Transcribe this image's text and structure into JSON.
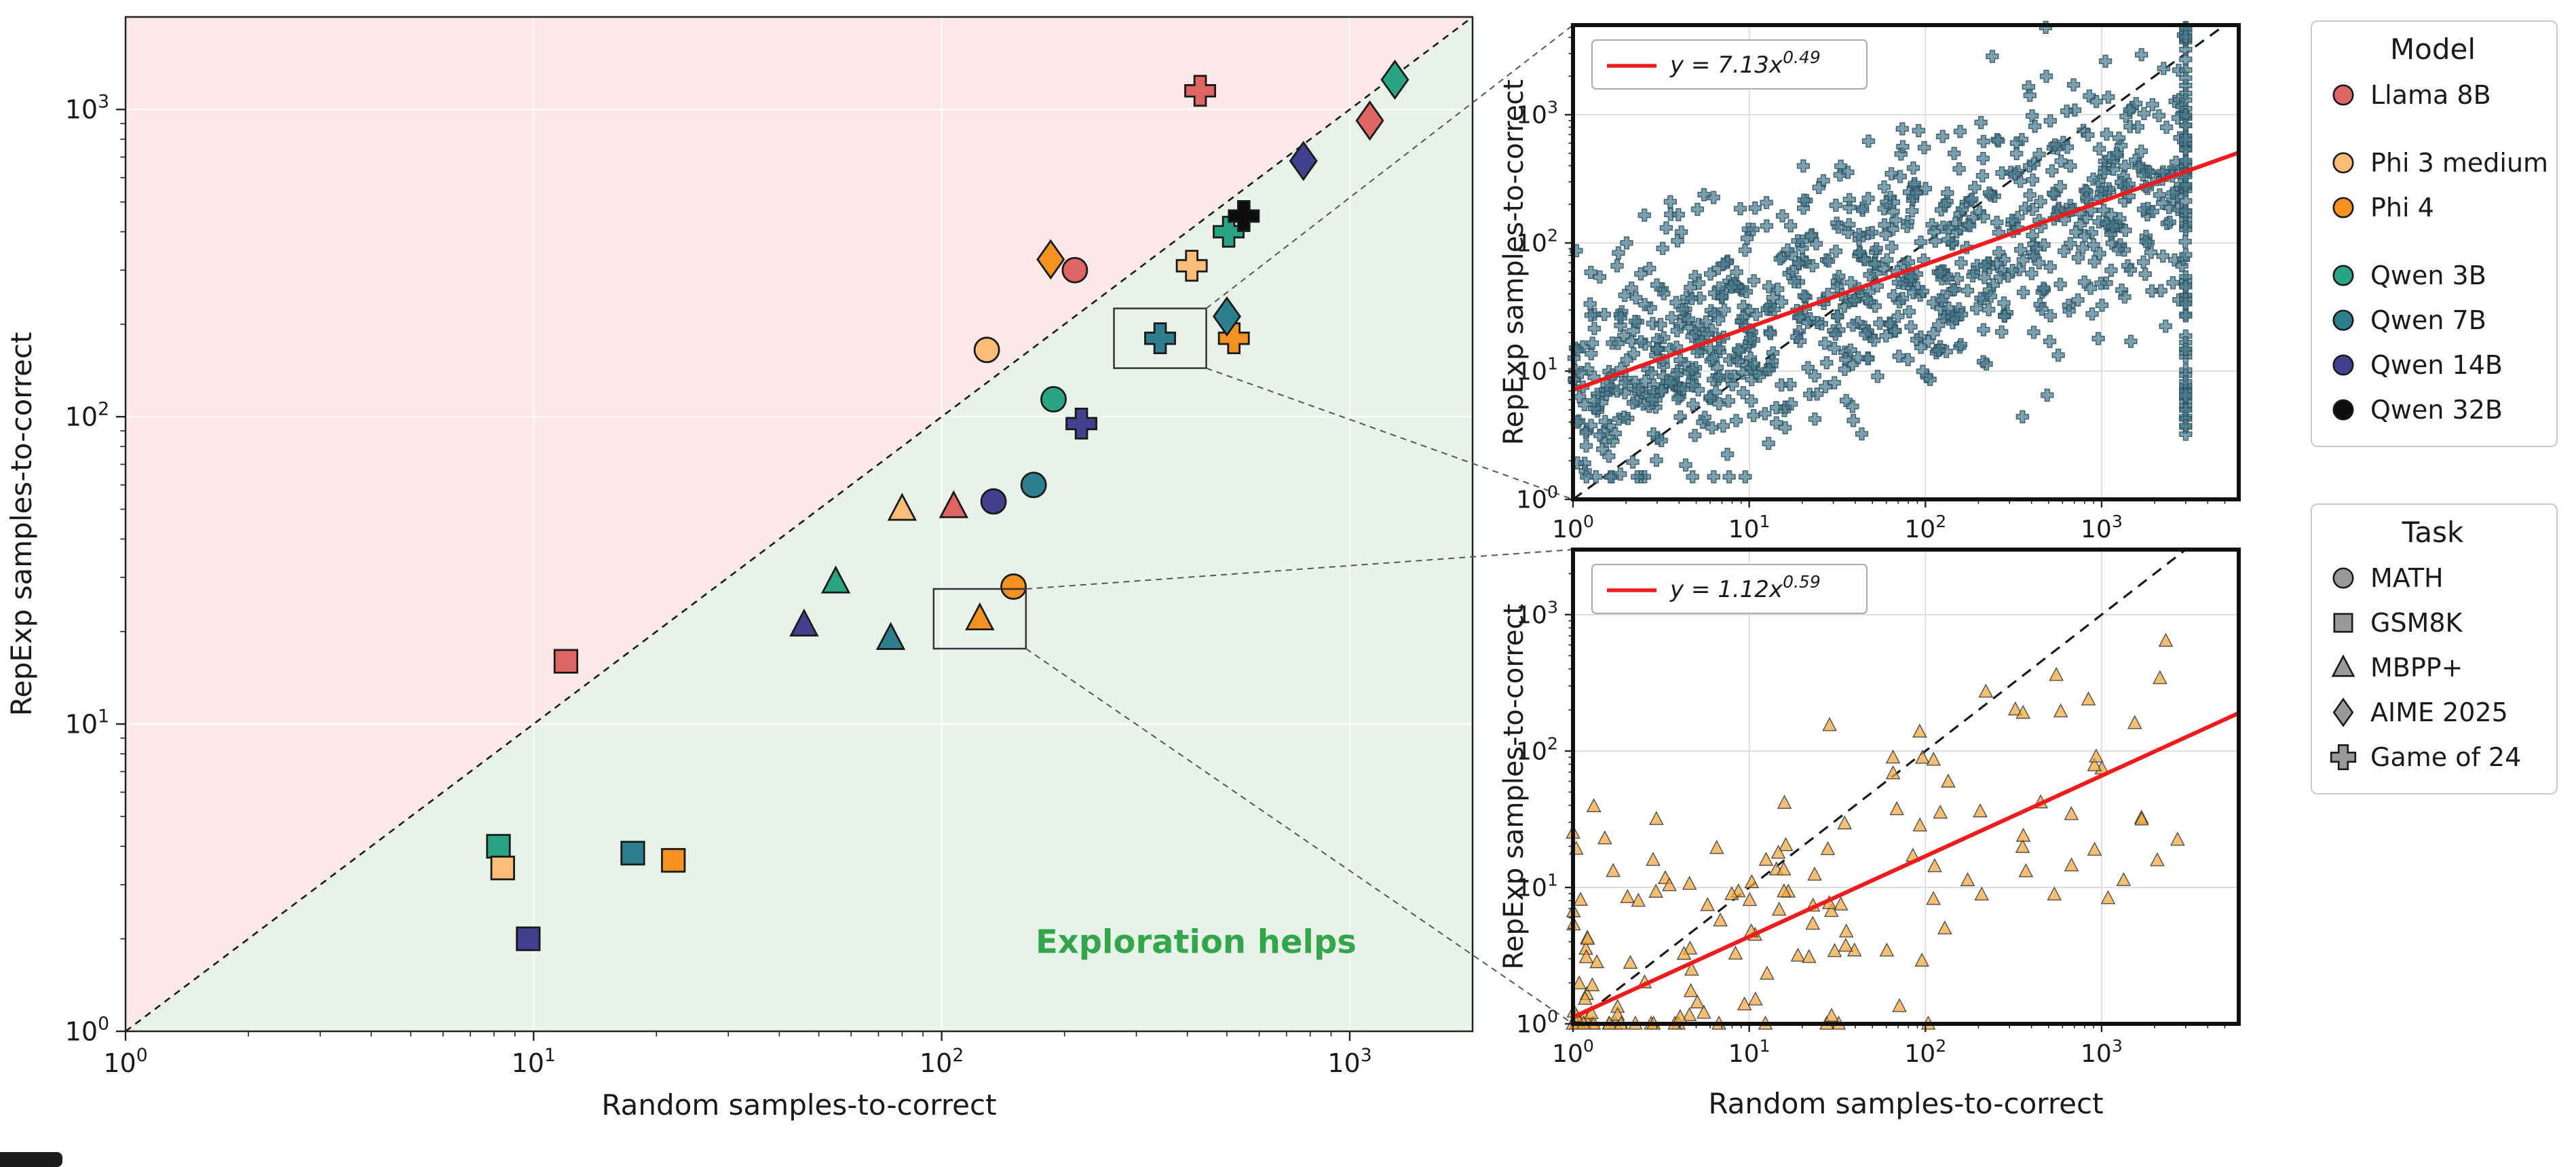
{
  "page": {
    "background": "#ffffff"
  },
  "models": [
    {
      "id": "llama8b",
      "label": "Llama 8B",
      "color": "#df6464"
    },
    {
      "id": "phi3",
      "label": "Phi 3 medium",
      "color": "#fbbd77"
    },
    {
      "id": "phi4",
      "label": "Phi 4",
      "color": "#f59120"
    },
    {
      "id": "qwen3b",
      "label": "Qwen 3B",
      "color": "#29a583"
    },
    {
      "id": "qwen7b",
      "label": "Qwen 7B",
      "color": "#2d7f8f"
    },
    {
      "id": "qwen14b",
      "label": "Qwen 14B",
      "color": "#41418f"
    },
    {
      "id": "qwen32b",
      "label": "Qwen 32B",
      "color": "#0d0d0d"
    }
  ],
  "tasks": [
    {
      "id": "math",
      "label": "MATH",
      "marker": "circle"
    },
    {
      "id": "gsm8k",
      "label": "GSM8K",
      "marker": "square"
    },
    {
      "id": "mbpp",
      "label": "MBPP+",
      "marker": "triangle"
    },
    {
      "id": "aime",
      "label": "AIME 2025",
      "marker": "diamond"
    },
    {
      "id": "game24",
      "label": "Game of 24",
      "marker": "plus"
    }
  ],
  "legends": {
    "model": {
      "title": "Model",
      "groups": [
        [
          "llama8b"
        ],
        [
          "phi3",
          "phi4"
        ],
        [
          "qwen3b",
          "qwen7b",
          "qwen14b",
          "qwen32b"
        ]
      ]
    },
    "task": {
      "title": "Task",
      "marker_color": "#999999",
      "items": [
        "math",
        "gsm8k",
        "mbpp",
        "aime",
        "game24"
      ]
    }
  },
  "chart_data": [
    {
      "id": "main",
      "type": "scatter",
      "xscale": "log",
      "yscale": "log",
      "xlabel": "Random samples-to-correct",
      "ylabel": "RepExp samples-to-correct",
      "xlim": [
        1,
        2000
      ],
      "ylim": [
        1,
        2000
      ],
      "x_tick_labels": [
        "10^0",
        "10^1",
        "10^2",
        "10^3"
      ],
      "y_tick_labels": [
        "10^0",
        "10^1",
        "10^2",
        "10^3"
      ],
      "diagonal": {
        "style": "dashed",
        "color": "#1a1a1a"
      },
      "regions": {
        "above": {
          "color": "#fbe8e8"
        },
        "below": {
          "color": "#e8f2e9",
          "annotation": "Exploration helps",
          "annotation_color": "#33a64c",
          "annotation_x": 420,
          "annotation_y": 1.8
        }
      },
      "points": [
        {
          "model": "llama8b",
          "task": "gsm8k",
          "x": 12,
          "y": 16
        },
        {
          "model": "qwen3b",
          "task": "gsm8k",
          "x": 8.2,
          "y": 4.0
        },
        {
          "model": "phi3",
          "task": "gsm8k",
          "x": 8.4,
          "y": 3.4
        },
        {
          "model": "qwen14b",
          "task": "gsm8k",
          "x": 9.7,
          "y": 2.0
        },
        {
          "model": "qwen7b",
          "task": "gsm8k",
          "x": 17.5,
          "y": 3.8
        },
        {
          "model": "phi4",
          "task": "gsm8k",
          "x": 22,
          "y": 3.6
        },
        {
          "model": "qwen14b",
          "task": "mbpp",
          "x": 46,
          "y": 21
        },
        {
          "model": "qwen3b",
          "task": "mbpp",
          "x": 55,
          "y": 29
        },
        {
          "model": "qwen7b",
          "task": "mbpp",
          "x": 75,
          "y": 19
        },
        {
          "model": "phi3",
          "task": "mbpp",
          "x": 80,
          "y": 50
        },
        {
          "model": "llama8b",
          "task": "mbpp",
          "x": 107,
          "y": 51
        },
        {
          "model": "phi4",
          "task": "mbpp",
          "x": 124,
          "y": 22,
          "highlight": true
        },
        {
          "model": "phi3",
          "task": "math",
          "x": 129,
          "y": 165
        },
        {
          "model": "qwen3b",
          "task": "math",
          "x": 188,
          "y": 114
        },
        {
          "model": "qwen14b",
          "task": "math",
          "x": 134,
          "y": 53
        },
        {
          "model": "qwen7b",
          "task": "math",
          "x": 168,
          "y": 60
        },
        {
          "model": "phi4",
          "task": "math",
          "x": 150,
          "y": 28
        },
        {
          "model": "llama8b",
          "task": "math",
          "x": 212,
          "y": 300
        },
        {
          "model": "qwen14b",
          "task": "game24",
          "x": 220,
          "y": 95
        },
        {
          "model": "qwen7b",
          "task": "game24",
          "x": 343,
          "y": 180,
          "highlight": true
        },
        {
          "model": "phi3",
          "task": "game24",
          "x": 410,
          "y": 310
        },
        {
          "model": "llama8b",
          "task": "game24",
          "x": 430,
          "y": 1150
        },
        {
          "model": "qwen3b",
          "task": "game24",
          "x": 505,
          "y": 400
        },
        {
          "model": "qwen32b",
          "task": "game24",
          "x": 550,
          "y": 450
        },
        {
          "model": "phi4",
          "task": "game24",
          "x": 520,
          "y": 180
        },
        {
          "model": "phi4",
          "task": "aime",
          "x": 185,
          "y": 325
        },
        {
          "model": "qwen7b",
          "task": "aime",
          "x": 500,
          "y": 212
        },
        {
          "model": "qwen14b",
          "task": "aime",
          "x": 770,
          "y": 680
        },
        {
          "model": "llama8b",
          "task": "aime",
          "x": 1120,
          "y": 920
        },
        {
          "model": "qwen3b",
          "task": "aime",
          "x": 1290,
          "y": 1250
        }
      ]
    },
    {
      "id": "inset_top",
      "type": "scatter",
      "xscale": "log",
      "yscale": "log",
      "ylabel": "RepExp samples-to-correct",
      "xlim": [
        1,
        6000
      ],
      "ylim": [
        1,
        5000
      ],
      "x_tick_labels": [
        "10^0",
        "10^1",
        "10^2",
        "10^3"
      ],
      "y_tick_labels": [
        "10^0",
        "10^1",
        "10^2",
        "10^3"
      ],
      "marker": "plus",
      "marker_color": "#4b7b8f",
      "marker_edge": "#2c4f5c",
      "diagonal": {
        "style": "dashed",
        "color": "#1a1a1a"
      },
      "fit": {
        "label": "y = 7.13x^0.49",
        "coef": "7.13",
        "exp": "0.49",
        "color": "#ee1c1c"
      },
      "cloud": {
        "seed": 42,
        "n": 850,
        "logx_max": 3.477,
        "sigma": 0.5,
        "ymin": 1.5,
        "ymax": 4800,
        "column": {
          "x": 3000,
          "n": 85,
          "ymin": 3,
          "ymax": 4800
        }
      }
    },
    {
      "id": "inset_bottom",
      "type": "scatter",
      "xscale": "log",
      "yscale": "log",
      "xlabel": "Random samples-to-correct",
      "ylabel": "RepExp samples-to-correct",
      "xlim": [
        1,
        6000
      ],
      "ylim": [
        1,
        3000
      ],
      "x_tick_labels": [
        "10^0",
        "10^1",
        "10^2",
        "10^3"
      ],
      "y_tick_labels": [
        "10^0",
        "10^1",
        "10^2",
        "10^3"
      ],
      "marker": "triangle",
      "marker_color": "#f2a63c",
      "marker_edge": "#3a3a3a",
      "diagonal": {
        "style": "dashed",
        "color": "#1a1a1a"
      },
      "fit": {
        "label": "y = 1.12x^0.59",
        "coef": "1.12",
        "exp": "0.59",
        "color": "#ee1c1c"
      },
      "cloud": {
        "seed": 11,
        "n": 150,
        "logx_max": 3.477,
        "skew": 1.9,
        "sigma": 0.55,
        "ymin": 1,
        "ymax": 2200
      }
    }
  ]
}
